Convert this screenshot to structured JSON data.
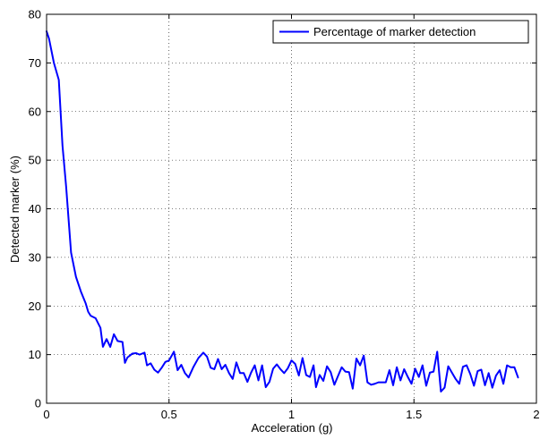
{
  "chart_data": {
    "type": "line",
    "xlabel": "Acceleration (g)",
    "ylabel": "Detected marker (%)",
    "xlim": [
      0,
      2
    ],
    "ylim": [
      0,
      80
    ],
    "x_ticks": [
      0,
      0.5,
      1,
      1.5,
      2
    ],
    "x_tick_labels": [
      "0",
      "0.5",
      "1",
      "1.5",
      "2"
    ],
    "y_ticks": [
      0,
      10,
      20,
      30,
      40,
      50,
      60,
      70,
      80
    ],
    "y_tick_labels": [
      "0",
      "10",
      "20",
      "30",
      "40",
      "50",
      "60",
      "70",
      "80"
    ],
    "grid": true,
    "grid_style": "dotted",
    "legend_position": "top-right",
    "series": [
      {
        "name": "Percentage of marker detection",
        "color": "#0000ff",
        "points": [
          [
            0.0,
            76.5
          ],
          [
            0.01,
            75.0
          ],
          [
            0.03,
            70.0
          ],
          [
            0.05,
            66.5
          ],
          [
            0.065,
            53.0
          ],
          [
            0.08,
            44.5
          ],
          [
            0.1,
            31.0
          ],
          [
            0.12,
            26.0
          ],
          [
            0.14,
            23.0
          ],
          [
            0.16,
            20.5
          ],
          [
            0.17,
            18.8
          ],
          [
            0.18,
            18.0
          ],
          [
            0.2,
            17.5
          ],
          [
            0.22,
            15.5
          ],
          [
            0.23,
            11.6
          ],
          [
            0.245,
            13.2
          ],
          [
            0.26,
            11.6
          ],
          [
            0.275,
            14.2
          ],
          [
            0.29,
            12.8
          ],
          [
            0.31,
            12.6
          ],
          [
            0.32,
            8.3
          ],
          [
            0.33,
            9.4
          ],
          [
            0.35,
            10.2
          ],
          [
            0.365,
            10.3
          ],
          [
            0.38,
            10.0
          ],
          [
            0.4,
            10.4
          ],
          [
            0.41,
            7.8
          ],
          [
            0.425,
            8.2
          ],
          [
            0.44,
            6.9
          ],
          [
            0.455,
            6.3
          ],
          [
            0.47,
            7.3
          ],
          [
            0.485,
            8.5
          ],
          [
            0.5,
            8.8
          ],
          [
            0.52,
            10.6
          ],
          [
            0.535,
            6.8
          ],
          [
            0.55,
            7.9
          ],
          [
            0.565,
            6.2
          ],
          [
            0.58,
            5.3
          ],
          [
            0.6,
            7.5
          ],
          [
            0.62,
            9.3
          ],
          [
            0.64,
            10.4
          ],
          [
            0.655,
            9.6
          ],
          [
            0.67,
            7.3
          ],
          [
            0.685,
            7.0
          ],
          [
            0.7,
            9.1
          ],
          [
            0.715,
            7.0
          ],
          [
            0.73,
            7.9
          ],
          [
            0.745,
            6.2
          ],
          [
            0.76,
            5.0
          ],
          [
            0.775,
            8.4
          ],
          [
            0.79,
            6.2
          ],
          [
            0.805,
            6.2
          ],
          [
            0.82,
            4.4
          ],
          [
            0.835,
            6.3
          ],
          [
            0.85,
            7.8
          ],
          [
            0.865,
            4.7
          ],
          [
            0.88,
            7.8
          ],
          [
            0.895,
            3.3
          ],
          [
            0.91,
            4.4
          ],
          [
            0.925,
            7.1
          ],
          [
            0.94,
            8.0
          ],
          [
            0.955,
            7.0
          ],
          [
            0.97,
            6.2
          ],
          [
            0.985,
            7.2
          ],
          [
            1.0,
            8.8
          ],
          [
            1.015,
            8.1
          ],
          [
            1.03,
            5.7
          ],
          [
            1.045,
            9.3
          ],
          [
            1.06,
            5.8
          ],
          [
            1.075,
            5.4
          ],
          [
            1.09,
            7.8
          ],
          [
            1.1,
            3.3
          ],
          [
            1.115,
            5.8
          ],
          [
            1.13,
            4.6
          ],
          [
            1.145,
            7.6
          ],
          [
            1.16,
            6.4
          ],
          [
            1.175,
            3.8
          ],
          [
            1.19,
            5.6
          ],
          [
            1.205,
            7.4
          ],
          [
            1.22,
            6.5
          ],
          [
            1.235,
            6.4
          ],
          [
            1.25,
            3.0
          ],
          [
            1.265,
            9.2
          ],
          [
            1.28,
            7.8
          ],
          [
            1.295,
            9.8
          ],
          [
            1.31,
            4.3
          ],
          [
            1.325,
            3.8
          ],
          [
            1.34,
            4.0
          ],
          [
            1.355,
            4.3
          ],
          [
            1.37,
            4.3
          ],
          [
            1.385,
            4.3
          ],
          [
            1.4,
            6.8
          ],
          [
            1.415,
            3.7
          ],
          [
            1.43,
            7.4
          ],
          [
            1.445,
            4.7
          ],
          [
            1.46,
            7.0
          ],
          [
            1.475,
            5.4
          ],
          [
            1.49,
            4.0
          ],
          [
            1.505,
            7.1
          ],
          [
            1.52,
            5.4
          ],
          [
            1.535,
            7.8
          ],
          [
            1.55,
            3.6
          ],
          [
            1.565,
            6.3
          ],
          [
            1.58,
            6.5
          ],
          [
            1.595,
            10.6
          ],
          [
            1.61,
            2.4
          ],
          [
            1.625,
            3.2
          ],
          [
            1.64,
            7.6
          ],
          [
            1.655,
            6.3
          ],
          [
            1.67,
            5.0
          ],
          [
            1.685,
            4.0
          ],
          [
            1.7,
            7.5
          ],
          [
            1.715,
            7.8
          ],
          [
            1.73,
            6.0
          ],
          [
            1.745,
            3.6
          ],
          [
            1.76,
            6.6
          ],
          [
            1.775,
            6.9
          ],
          [
            1.79,
            3.7
          ],
          [
            1.805,
            6.2
          ],
          [
            1.82,
            3.2
          ],
          [
            1.835,
            5.7
          ],
          [
            1.85,
            6.8
          ],
          [
            1.865,
            4.0
          ],
          [
            1.88,
            7.8
          ],
          [
            1.895,
            7.4
          ],
          [
            1.91,
            7.4
          ],
          [
            1.925,
            5.3
          ]
        ]
      }
    ]
  }
}
